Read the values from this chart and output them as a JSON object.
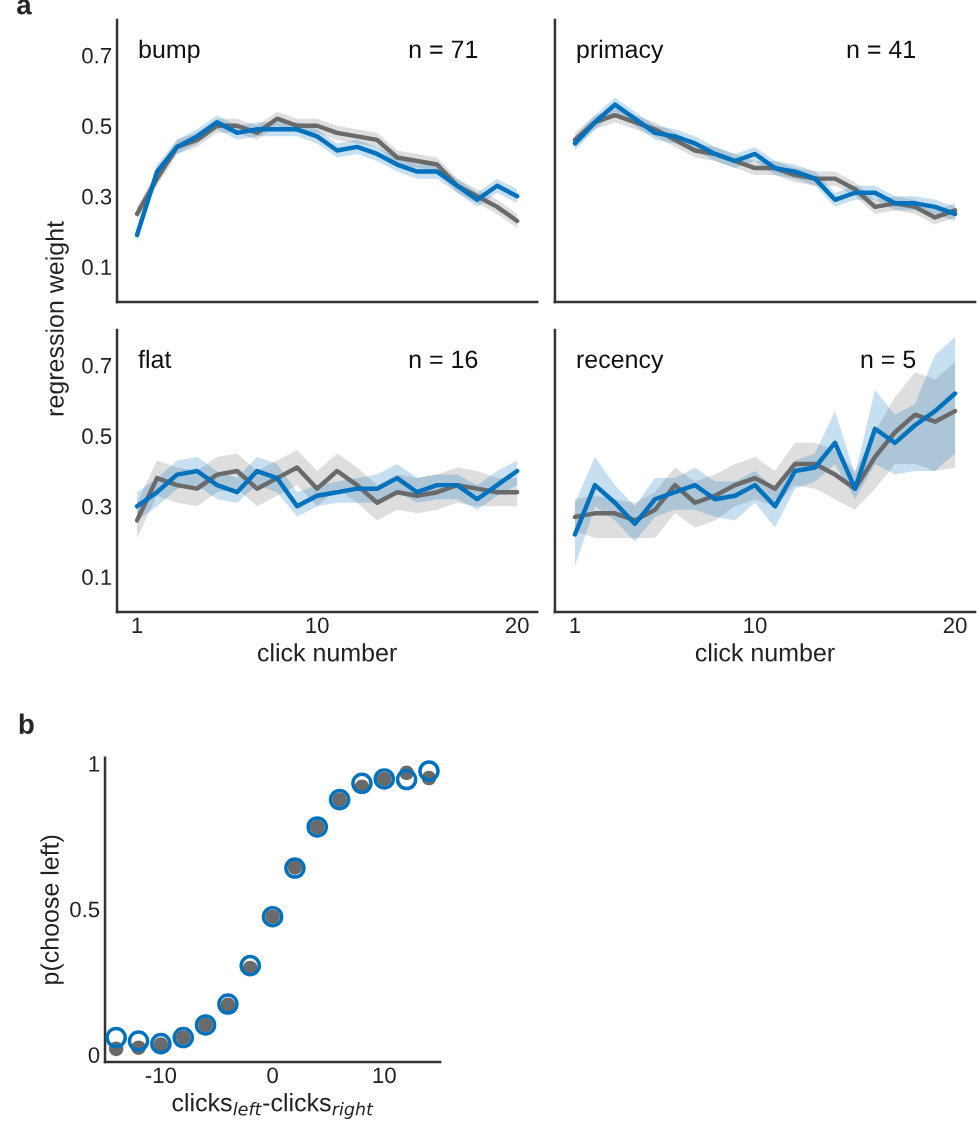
{
  "chart_data": [
    {
      "type": "line",
      "title": "a",
      "ylabel": "regression weight",
      "annotations": [
        "bump",
        "n = 71"
      ],
      "x": [
        1,
        2,
        3,
        4,
        5,
        6,
        7,
        8,
        9,
        10,
        11,
        12,
        13,
        14,
        15,
        16,
        17,
        18,
        19,
        20
      ],
      "xlim": [
        0,
        21
      ],
      "ylim": [
        0,
        0.8
      ],
      "xticks": [
        1,
        10,
        20
      ],
      "yticks": [
        0.1,
        0.3,
        0.5,
        0.7
      ],
      "tick_labels": "y",
      "grid": false,
      "legend": false,
      "marker": "none",
      "line_style": "solid",
      "series": [
        {
          "color": "#6a6a6a",
          "values": [
            0.25,
            0.35,
            0.44,
            0.46,
            0.5,
            0.5,
            0.48,
            0.52,
            0.5,
            0.5,
            0.48,
            0.47,
            0.46,
            0.41,
            0.4,
            0.39,
            0.33,
            0.3,
            0.27,
            0.23
          ],
          "lower": [
            0.23,
            0.33,
            0.42,
            0.44,
            0.48,
            0.48,
            0.46,
            0.5,
            0.48,
            0.48,
            0.46,
            0.45,
            0.44,
            0.39,
            0.38,
            0.37,
            0.31,
            0.28,
            0.25,
            0.21
          ],
          "upper": [
            0.27,
            0.37,
            0.46,
            0.48,
            0.52,
            0.52,
            0.5,
            0.54,
            0.52,
            0.52,
            0.5,
            0.49,
            0.48,
            0.43,
            0.42,
            0.41,
            0.35,
            0.32,
            0.29,
            0.25
          ]
        },
        {
          "color": "#0072bd",
          "values": [
            0.19,
            0.37,
            0.44,
            0.47,
            0.51,
            0.48,
            0.49,
            0.49,
            0.49,
            0.47,
            0.43,
            0.44,
            0.42,
            0.39,
            0.37,
            0.37,
            0.33,
            0.29,
            0.33,
            0.3
          ],
          "lower": [
            0.17,
            0.35,
            0.42,
            0.45,
            0.49,
            0.46,
            0.47,
            0.47,
            0.47,
            0.45,
            0.41,
            0.42,
            0.4,
            0.37,
            0.35,
            0.35,
            0.31,
            0.27,
            0.31,
            0.28
          ],
          "upper": [
            0.21,
            0.39,
            0.46,
            0.49,
            0.53,
            0.5,
            0.51,
            0.51,
            0.51,
            0.49,
            0.45,
            0.46,
            0.44,
            0.41,
            0.39,
            0.39,
            0.35,
            0.31,
            0.35,
            0.32
          ]
        }
      ]
    },
    {
      "type": "line",
      "annotations": [
        "primacy",
        "n = 41"
      ],
      "x": [
        1,
        2,
        3,
        4,
        5,
        6,
        7,
        8,
        9,
        10,
        11,
        12,
        13,
        14,
        15,
        16,
        17,
        18,
        19,
        20
      ],
      "xlim": [
        0,
        21
      ],
      "ylim": [
        0,
        0.8
      ],
      "xticks": [
        1,
        10,
        20
      ],
      "yticks": [
        0.1,
        0.3,
        0.5,
        0.7
      ],
      "tick_labels": false,
      "grid": false,
      "legend": false,
      "marker": "none",
      "line_style": "solid",
      "series": [
        {
          "color": "#6a6a6a",
          "values": [
            0.46,
            0.51,
            0.53,
            0.51,
            0.49,
            0.46,
            0.43,
            0.42,
            0.4,
            0.38,
            0.38,
            0.36,
            0.35,
            0.35,
            0.32,
            0.27,
            0.28,
            0.27,
            0.24,
            0.26
          ],
          "lower": [
            0.44,
            0.49,
            0.51,
            0.49,
            0.47,
            0.44,
            0.41,
            0.4,
            0.38,
            0.36,
            0.36,
            0.34,
            0.33,
            0.33,
            0.3,
            0.25,
            0.26,
            0.25,
            0.22,
            0.24
          ],
          "upper": [
            0.48,
            0.53,
            0.55,
            0.53,
            0.51,
            0.48,
            0.45,
            0.44,
            0.42,
            0.4,
            0.4,
            0.38,
            0.37,
            0.37,
            0.34,
            0.29,
            0.3,
            0.29,
            0.26,
            0.28
          ]
        },
        {
          "color": "#0072bd",
          "values": [
            0.45,
            0.51,
            0.56,
            0.52,
            0.48,
            0.47,
            0.45,
            0.42,
            0.4,
            0.42,
            0.38,
            0.37,
            0.35,
            0.29,
            0.31,
            0.31,
            0.28,
            0.28,
            0.27,
            0.25
          ],
          "lower": [
            0.43,
            0.49,
            0.54,
            0.5,
            0.46,
            0.45,
            0.43,
            0.4,
            0.38,
            0.4,
            0.36,
            0.35,
            0.33,
            0.27,
            0.29,
            0.29,
            0.26,
            0.26,
            0.25,
            0.23
          ],
          "upper": [
            0.47,
            0.53,
            0.58,
            0.54,
            0.5,
            0.49,
            0.47,
            0.44,
            0.42,
            0.44,
            0.4,
            0.39,
            0.37,
            0.31,
            0.33,
            0.33,
            0.3,
            0.3,
            0.29,
            0.27
          ]
        }
      ]
    },
    {
      "type": "line",
      "xlabel": "click number",
      "annotations": [
        "flat",
        "n = 16"
      ],
      "x": [
        1,
        2,
        3,
        4,
        5,
        6,
        7,
        8,
        9,
        10,
        11,
        12,
        13,
        14,
        15,
        16,
        17,
        18,
        19,
        20
      ],
      "xlim": [
        0,
        21
      ],
      "ylim": [
        0,
        0.8
      ],
      "xticks": [
        1,
        10,
        20
      ],
      "yticks": [
        0.1,
        0.3,
        0.5,
        0.7
      ],
      "grid": false,
      "legend": false,
      "marker": "none",
      "line_style": "solid",
      "series": [
        {
          "color": "#6a6a6a",
          "values": [
            0.26,
            0.38,
            0.36,
            0.35,
            0.39,
            0.4,
            0.35,
            0.38,
            0.41,
            0.35,
            0.4,
            0.36,
            0.31,
            0.34,
            0.33,
            0.34,
            0.36,
            0.35,
            0.34,
            0.34
          ],
          "lower": [
            0.21,
            0.33,
            0.31,
            0.3,
            0.34,
            0.35,
            0.3,
            0.33,
            0.36,
            0.3,
            0.35,
            0.31,
            0.26,
            0.29,
            0.28,
            0.29,
            0.31,
            0.3,
            0.3,
            0.3
          ],
          "upper": [
            0.31,
            0.43,
            0.41,
            0.4,
            0.44,
            0.45,
            0.4,
            0.43,
            0.46,
            0.4,
            0.45,
            0.41,
            0.36,
            0.39,
            0.38,
            0.39,
            0.41,
            0.4,
            0.38,
            0.38
          ]
        },
        {
          "color": "#0072bd",
          "values": [
            0.3,
            0.34,
            0.39,
            0.4,
            0.36,
            0.34,
            0.4,
            0.38,
            0.3,
            0.33,
            0.34,
            0.35,
            0.35,
            0.38,
            0.34,
            0.36,
            0.36,
            0.32,
            0.36,
            0.4
          ],
          "lower": [
            0.26,
            0.3,
            0.35,
            0.36,
            0.32,
            0.31,
            0.36,
            0.34,
            0.27,
            0.3,
            0.31,
            0.31,
            0.31,
            0.34,
            0.31,
            0.32,
            0.32,
            0.29,
            0.33,
            0.36
          ],
          "upper": [
            0.34,
            0.38,
            0.43,
            0.44,
            0.4,
            0.38,
            0.44,
            0.42,
            0.34,
            0.36,
            0.37,
            0.38,
            0.39,
            0.42,
            0.38,
            0.39,
            0.39,
            0.36,
            0.4,
            0.43
          ]
        }
      ]
    },
    {
      "type": "line",
      "xlabel": "click number",
      "annotations": [
        "recency",
        "n = 5"
      ],
      "x": [
        1,
        2,
        3,
        4,
        5,
        6,
        7,
        8,
        9,
        10,
        11,
        12,
        13,
        14,
        15,
        16,
        17,
        18,
        19,
        20
      ],
      "xlim": [
        0,
        21
      ],
      "ylim": [
        0,
        0.8
      ],
      "xticks": [
        1,
        10,
        20
      ],
      "yticks": [
        0.1,
        0.3,
        0.5,
        0.7
      ],
      "tick_labels": "x",
      "grid": false,
      "legend": false,
      "marker": "none",
      "line_style": "solid",
      "series": [
        {
          "color": "#6a6a6a",
          "values": [
            0.27,
            0.28,
            0.28,
            0.26,
            0.29,
            0.36,
            0.31,
            0.33,
            0.36,
            0.38,
            0.35,
            0.42,
            0.42,
            0.39,
            0.35,
            0.44,
            0.51,
            0.56,
            0.54,
            0.57
          ],
          "lower": [
            0.23,
            0.21,
            0.21,
            0.21,
            0.21,
            0.28,
            0.24,
            0.26,
            0.3,
            0.32,
            0.3,
            0.36,
            0.35,
            0.32,
            0.29,
            0.35,
            0.42,
            0.42,
            0.4,
            0.41
          ],
          "upper": [
            0.32,
            0.33,
            0.32,
            0.31,
            0.34,
            0.41,
            0.37,
            0.39,
            0.42,
            0.44,
            0.4,
            0.48,
            0.48,
            0.46,
            0.4,
            0.51,
            0.61,
            0.68,
            0.66,
            0.71
          ]
        },
        {
          "color": "#0072bd",
          "values": [
            0.22,
            0.36,
            0.31,
            0.25,
            0.32,
            0.34,
            0.36,
            0.32,
            0.33,
            0.36,
            0.3,
            0.4,
            0.41,
            0.48,
            0.35,
            0.52,
            0.48,
            0.53,
            0.57,
            0.62
          ],
          "lower": [
            0.13,
            0.3,
            0.26,
            0.2,
            0.27,
            0.29,
            0.29,
            0.27,
            0.26,
            0.31,
            0.24,
            0.35,
            0.37,
            0.42,
            0.32,
            0.42,
            0.39,
            0.4,
            0.4,
            0.45
          ],
          "upper": [
            0.31,
            0.44,
            0.36,
            0.3,
            0.38,
            0.38,
            0.41,
            0.37,
            0.37,
            0.4,
            0.35,
            0.43,
            0.45,
            0.57,
            0.39,
            0.63,
            0.56,
            0.59,
            0.73,
            0.78
          ]
        }
      ]
    },
    {
      "type": "scatter",
      "title": "b",
      "xlabel": "clicks$_{left}$-clicks$_{right}$",
      "ylabel": "p(choose left)",
      "x": [
        -14,
        -12,
        -10,
        -8,
        -6,
        -4,
        -2,
        0,
        2,
        4,
        6,
        8,
        10,
        12,
        14
      ],
      "xlim": [
        -15,
        15
      ],
      "ylim": [
        -0.025,
        1.02
      ],
      "xticks": [
        -10,
        0,
        10
      ],
      "yticks": [
        0,
        0.5,
        1
      ],
      "grid": false,
      "legend": false,
      "marker": "circle",
      "series": [
        {
          "color": "#6a6a6a",
          "values": [
            0.02,
            0.024,
            0.035,
            0.059,
            0.102,
            0.171,
            0.298,
            0.474,
            0.643,
            0.782,
            0.876,
            0.92,
            0.947,
            0.968,
            0.95
          ]
        },
        {
          "color": "#0072bd",
          "values": [
            0.059,
            0.047,
            0.038,
            0.059,
            0.102,
            0.174,
            0.306,
            0.474,
            0.641,
            0.782,
            0.876,
            0.932,
            0.947,
            0.945,
            0.974
          ]
        }
      ]
    }
  ]
}
